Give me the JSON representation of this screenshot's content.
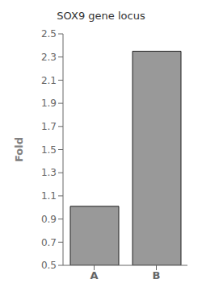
{
  "chart_data": {
    "type": "bar",
    "title": "SOX9 gene locus",
    "categories": [
      "A",
      "B"
    ],
    "values": [
      1.01,
      2.35
    ],
    "color": "#999999",
    "ylabel": "Fold",
    "ylim": [
      0.5,
      2.5
    ],
    "yticks": [
      0.5,
      0.7,
      0.9,
      1.1,
      1.3,
      1.5,
      1.7,
      1.9,
      2.1,
      2.3,
      2.5
    ],
    "grid": false
  }
}
